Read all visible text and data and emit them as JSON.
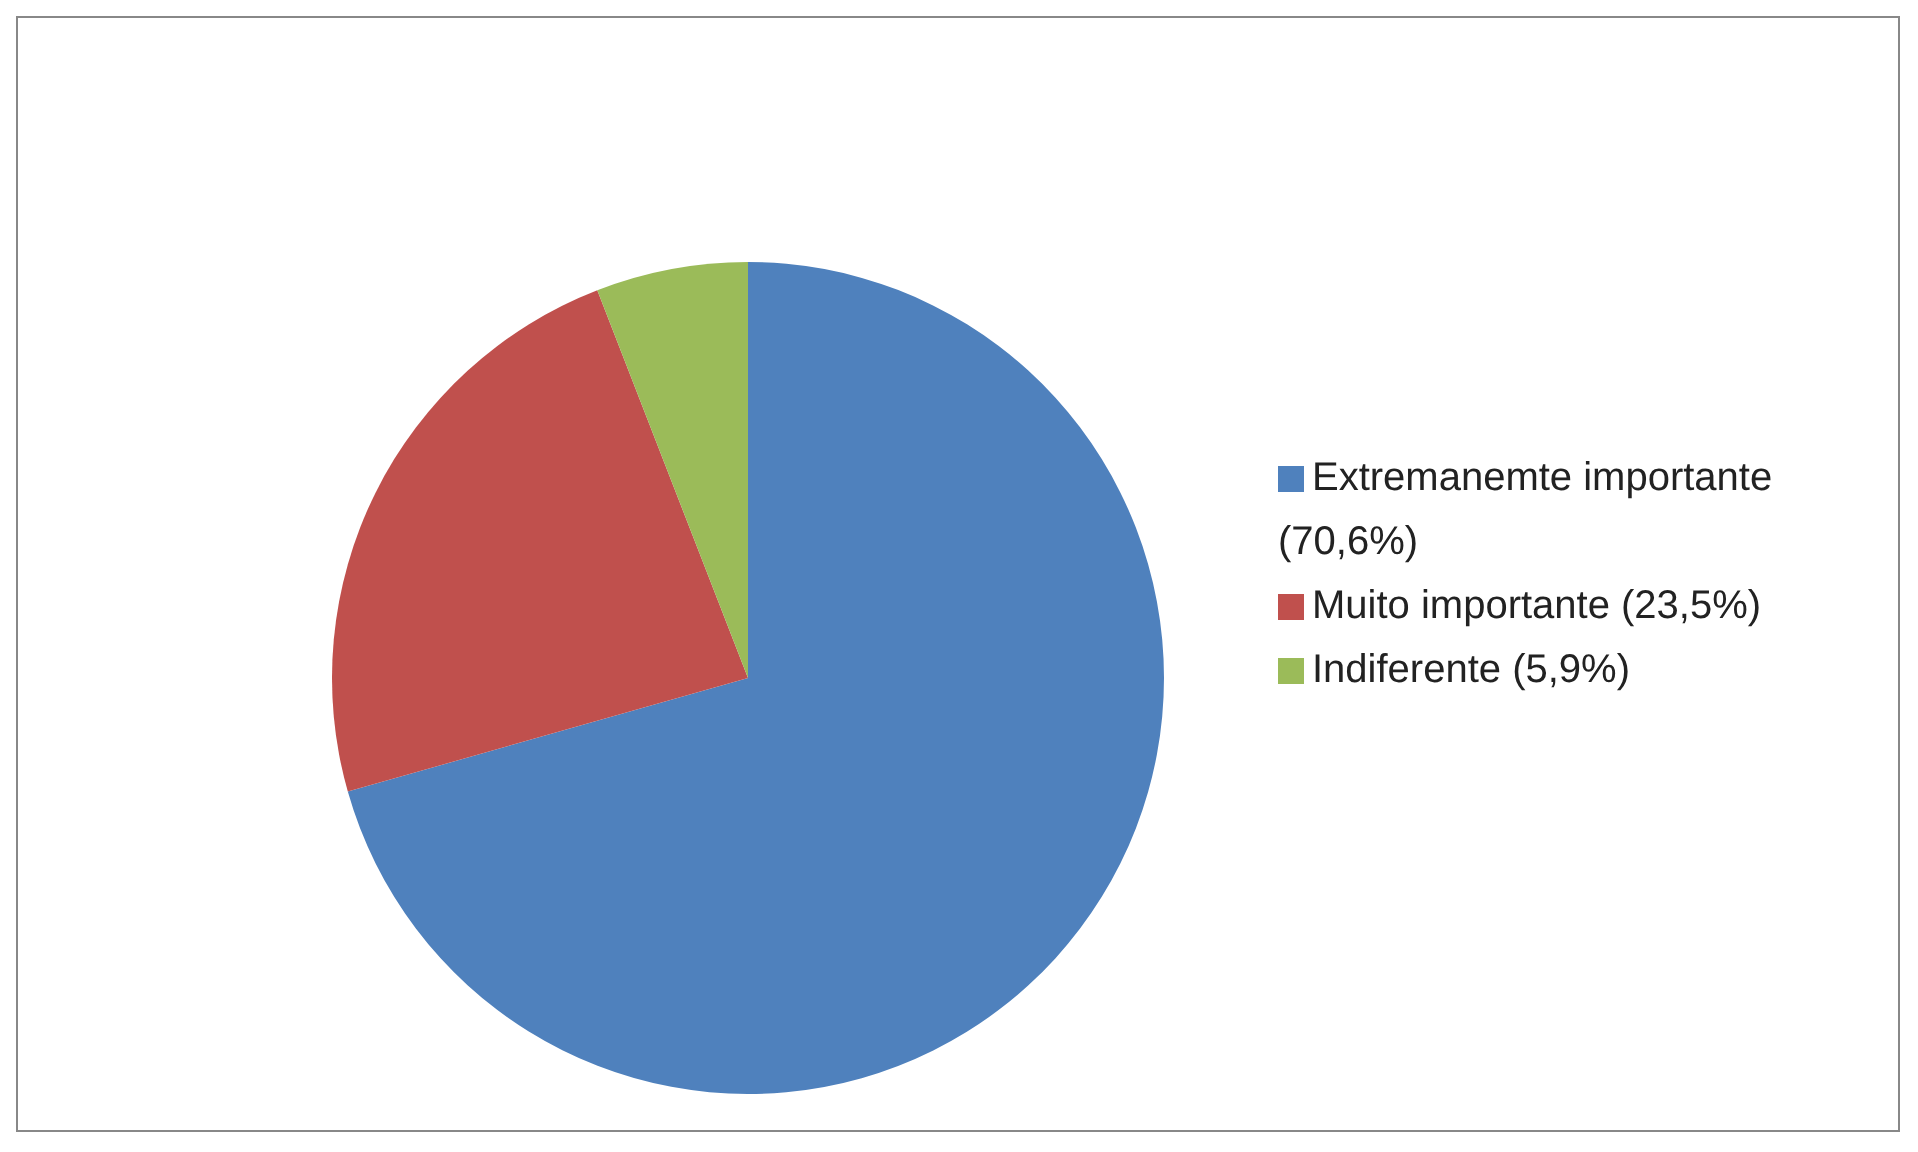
{
  "chart_data": {
    "type": "pie",
    "categories": [
      "Extremanemte importante (70,6%)",
      "Muito importante (23,5%)",
      "Indiferente (5,9%)"
    ],
    "values": [
      70.6,
      23.5,
      5.9
    ],
    "colors": [
      "#4f81bd",
      "#c0504d",
      "#9bbb59"
    ],
    "legend": "right"
  }
}
